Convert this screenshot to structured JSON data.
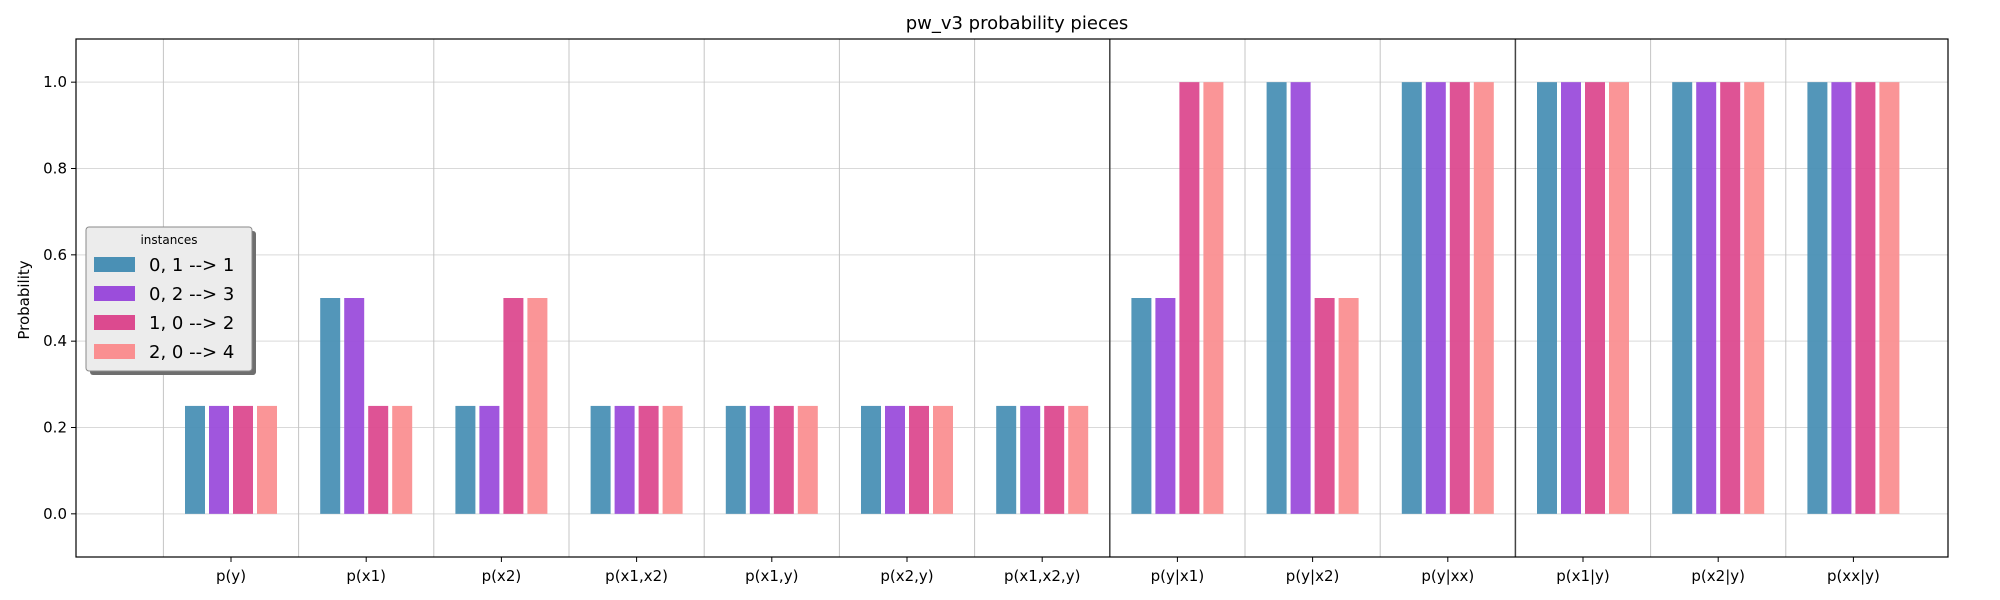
{
  "chart_data": {
    "type": "bar",
    "title": "pw_v3 probability pieces",
    "ylabel": "Probability",
    "xlabel": "",
    "ylim": [
      -0.1,
      1.1
    ],
    "yticks": [
      "0.0",
      "0.2",
      "0.4",
      "0.6",
      "0.8",
      "1.0"
    ],
    "grid": true,
    "legend_position": "center-left",
    "legend_title": "instances",
    "categories": [
      "p(y)",
      "p(x1)",
      "p(x2)",
      "p(x1,x2)",
      "p(x1,y)",
      "p(x2,y)",
      "p(x1,x2,y)",
      "p(y|x1)",
      "p(y|x2)",
      "p(y|xx)",
      "p(x1|y)",
      "p(x2|y)",
      "p(xx|y)"
    ],
    "group_separators_after": [
      "p(x1,x2,y)",
      "p(y|xx)"
    ],
    "series": [
      {
        "name": "0, 1 --> 1",
        "color": "#4a90b5",
        "values": [
          0.25,
          0.5,
          0.25,
          0.25,
          0.25,
          0.25,
          0.25,
          0.5,
          1.0,
          1.0,
          1.0,
          1.0,
          1.0
        ]
      },
      {
        "name": "0, 2 --> 3",
        "color": "#9b4ddb",
        "values": [
          0.25,
          0.5,
          0.25,
          0.25,
          0.25,
          0.25,
          0.25,
          0.5,
          1.0,
          1.0,
          1.0,
          1.0,
          1.0
        ]
      },
      {
        "name": "1, 0 --> 2",
        "color": "#dc4a8f",
        "values": [
          0.25,
          0.25,
          0.5,
          0.25,
          0.25,
          0.25,
          0.25,
          1.0,
          0.5,
          1.0,
          1.0,
          1.0,
          1.0
        ]
      },
      {
        "name": "2, 0 --> 4",
        "color": "#fa8f91",
        "values": [
          0.25,
          0.25,
          0.5,
          0.25,
          0.25,
          0.25,
          0.25,
          1.0,
          0.5,
          1.0,
          1.0,
          1.0,
          1.0
        ]
      }
    ]
  }
}
